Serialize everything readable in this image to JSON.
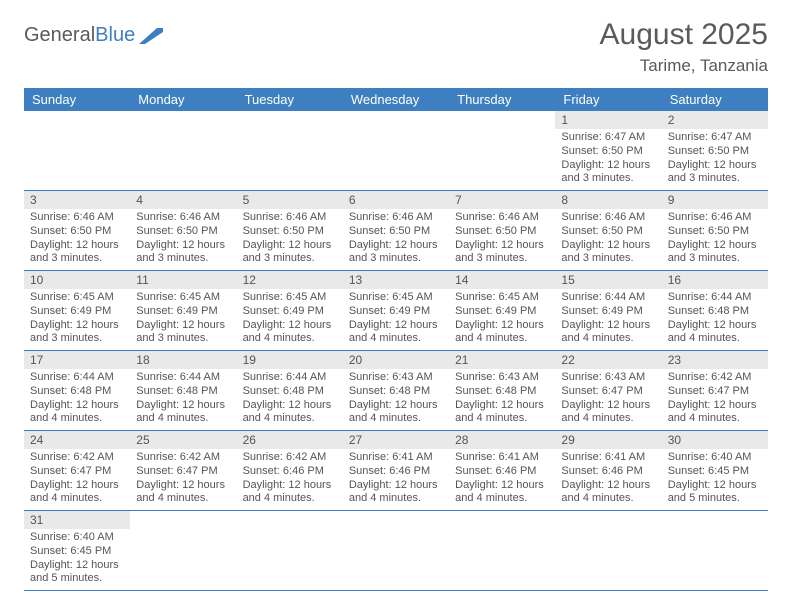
{
  "logo": {
    "text1": "General",
    "text2": "Blue"
  },
  "title": "August 2025",
  "location": "Tarime, Tanzania",
  "colors": {
    "header_bg": "#3d7fc0",
    "header_text": "#ffffff",
    "daynum_bg": "#e9e9e9",
    "text": "#555555",
    "rule": "#3d7fc0"
  },
  "weekdays": [
    "Sunday",
    "Monday",
    "Tuesday",
    "Wednesday",
    "Thursday",
    "Friday",
    "Saturday"
  ],
  "weeks": [
    [
      null,
      null,
      null,
      null,
      null,
      {
        "n": "1",
        "sr": "Sunrise: 6:47 AM",
        "ss": "Sunset: 6:50 PM",
        "d1": "Daylight: 12 hours",
        "d2": "and 3 minutes."
      },
      {
        "n": "2",
        "sr": "Sunrise: 6:47 AM",
        "ss": "Sunset: 6:50 PM",
        "d1": "Daylight: 12 hours",
        "d2": "and 3 minutes."
      }
    ],
    [
      {
        "n": "3",
        "sr": "Sunrise: 6:46 AM",
        "ss": "Sunset: 6:50 PM",
        "d1": "Daylight: 12 hours",
        "d2": "and 3 minutes."
      },
      {
        "n": "4",
        "sr": "Sunrise: 6:46 AM",
        "ss": "Sunset: 6:50 PM",
        "d1": "Daylight: 12 hours",
        "d2": "and 3 minutes."
      },
      {
        "n": "5",
        "sr": "Sunrise: 6:46 AM",
        "ss": "Sunset: 6:50 PM",
        "d1": "Daylight: 12 hours",
        "d2": "and 3 minutes."
      },
      {
        "n": "6",
        "sr": "Sunrise: 6:46 AM",
        "ss": "Sunset: 6:50 PM",
        "d1": "Daylight: 12 hours",
        "d2": "and 3 minutes."
      },
      {
        "n": "7",
        "sr": "Sunrise: 6:46 AM",
        "ss": "Sunset: 6:50 PM",
        "d1": "Daylight: 12 hours",
        "d2": "and 3 minutes."
      },
      {
        "n": "8",
        "sr": "Sunrise: 6:46 AM",
        "ss": "Sunset: 6:50 PM",
        "d1": "Daylight: 12 hours",
        "d2": "and 3 minutes."
      },
      {
        "n": "9",
        "sr": "Sunrise: 6:46 AM",
        "ss": "Sunset: 6:50 PM",
        "d1": "Daylight: 12 hours",
        "d2": "and 3 minutes."
      }
    ],
    [
      {
        "n": "10",
        "sr": "Sunrise: 6:45 AM",
        "ss": "Sunset: 6:49 PM",
        "d1": "Daylight: 12 hours",
        "d2": "and 3 minutes."
      },
      {
        "n": "11",
        "sr": "Sunrise: 6:45 AM",
        "ss": "Sunset: 6:49 PM",
        "d1": "Daylight: 12 hours",
        "d2": "and 3 minutes."
      },
      {
        "n": "12",
        "sr": "Sunrise: 6:45 AM",
        "ss": "Sunset: 6:49 PM",
        "d1": "Daylight: 12 hours",
        "d2": "and 4 minutes."
      },
      {
        "n": "13",
        "sr": "Sunrise: 6:45 AM",
        "ss": "Sunset: 6:49 PM",
        "d1": "Daylight: 12 hours",
        "d2": "and 4 minutes."
      },
      {
        "n": "14",
        "sr": "Sunrise: 6:45 AM",
        "ss": "Sunset: 6:49 PM",
        "d1": "Daylight: 12 hours",
        "d2": "and 4 minutes."
      },
      {
        "n": "15",
        "sr": "Sunrise: 6:44 AM",
        "ss": "Sunset: 6:49 PM",
        "d1": "Daylight: 12 hours",
        "d2": "and 4 minutes."
      },
      {
        "n": "16",
        "sr": "Sunrise: 6:44 AM",
        "ss": "Sunset: 6:48 PM",
        "d1": "Daylight: 12 hours",
        "d2": "and 4 minutes."
      }
    ],
    [
      {
        "n": "17",
        "sr": "Sunrise: 6:44 AM",
        "ss": "Sunset: 6:48 PM",
        "d1": "Daylight: 12 hours",
        "d2": "and 4 minutes."
      },
      {
        "n": "18",
        "sr": "Sunrise: 6:44 AM",
        "ss": "Sunset: 6:48 PM",
        "d1": "Daylight: 12 hours",
        "d2": "and 4 minutes."
      },
      {
        "n": "19",
        "sr": "Sunrise: 6:44 AM",
        "ss": "Sunset: 6:48 PM",
        "d1": "Daylight: 12 hours",
        "d2": "and 4 minutes."
      },
      {
        "n": "20",
        "sr": "Sunrise: 6:43 AM",
        "ss": "Sunset: 6:48 PM",
        "d1": "Daylight: 12 hours",
        "d2": "and 4 minutes."
      },
      {
        "n": "21",
        "sr": "Sunrise: 6:43 AM",
        "ss": "Sunset: 6:48 PM",
        "d1": "Daylight: 12 hours",
        "d2": "and 4 minutes."
      },
      {
        "n": "22",
        "sr": "Sunrise: 6:43 AM",
        "ss": "Sunset: 6:47 PM",
        "d1": "Daylight: 12 hours",
        "d2": "and 4 minutes."
      },
      {
        "n": "23",
        "sr": "Sunrise: 6:42 AM",
        "ss": "Sunset: 6:47 PM",
        "d1": "Daylight: 12 hours",
        "d2": "and 4 minutes."
      }
    ],
    [
      {
        "n": "24",
        "sr": "Sunrise: 6:42 AM",
        "ss": "Sunset: 6:47 PM",
        "d1": "Daylight: 12 hours",
        "d2": "and 4 minutes."
      },
      {
        "n": "25",
        "sr": "Sunrise: 6:42 AM",
        "ss": "Sunset: 6:47 PM",
        "d1": "Daylight: 12 hours",
        "d2": "and 4 minutes."
      },
      {
        "n": "26",
        "sr": "Sunrise: 6:42 AM",
        "ss": "Sunset: 6:46 PM",
        "d1": "Daylight: 12 hours",
        "d2": "and 4 minutes."
      },
      {
        "n": "27",
        "sr": "Sunrise: 6:41 AM",
        "ss": "Sunset: 6:46 PM",
        "d1": "Daylight: 12 hours",
        "d2": "and 4 minutes."
      },
      {
        "n": "28",
        "sr": "Sunrise: 6:41 AM",
        "ss": "Sunset: 6:46 PM",
        "d1": "Daylight: 12 hours",
        "d2": "and 4 minutes."
      },
      {
        "n": "29",
        "sr": "Sunrise: 6:41 AM",
        "ss": "Sunset: 6:46 PM",
        "d1": "Daylight: 12 hours",
        "d2": "and 4 minutes."
      },
      {
        "n": "30",
        "sr": "Sunrise: 6:40 AM",
        "ss": "Sunset: 6:45 PM",
        "d1": "Daylight: 12 hours",
        "d2": "and 5 minutes."
      }
    ],
    [
      {
        "n": "31",
        "sr": "Sunrise: 6:40 AM",
        "ss": "Sunset: 6:45 PM",
        "d1": "Daylight: 12 hours",
        "d2": "and 5 minutes."
      },
      null,
      null,
      null,
      null,
      null,
      null
    ]
  ]
}
